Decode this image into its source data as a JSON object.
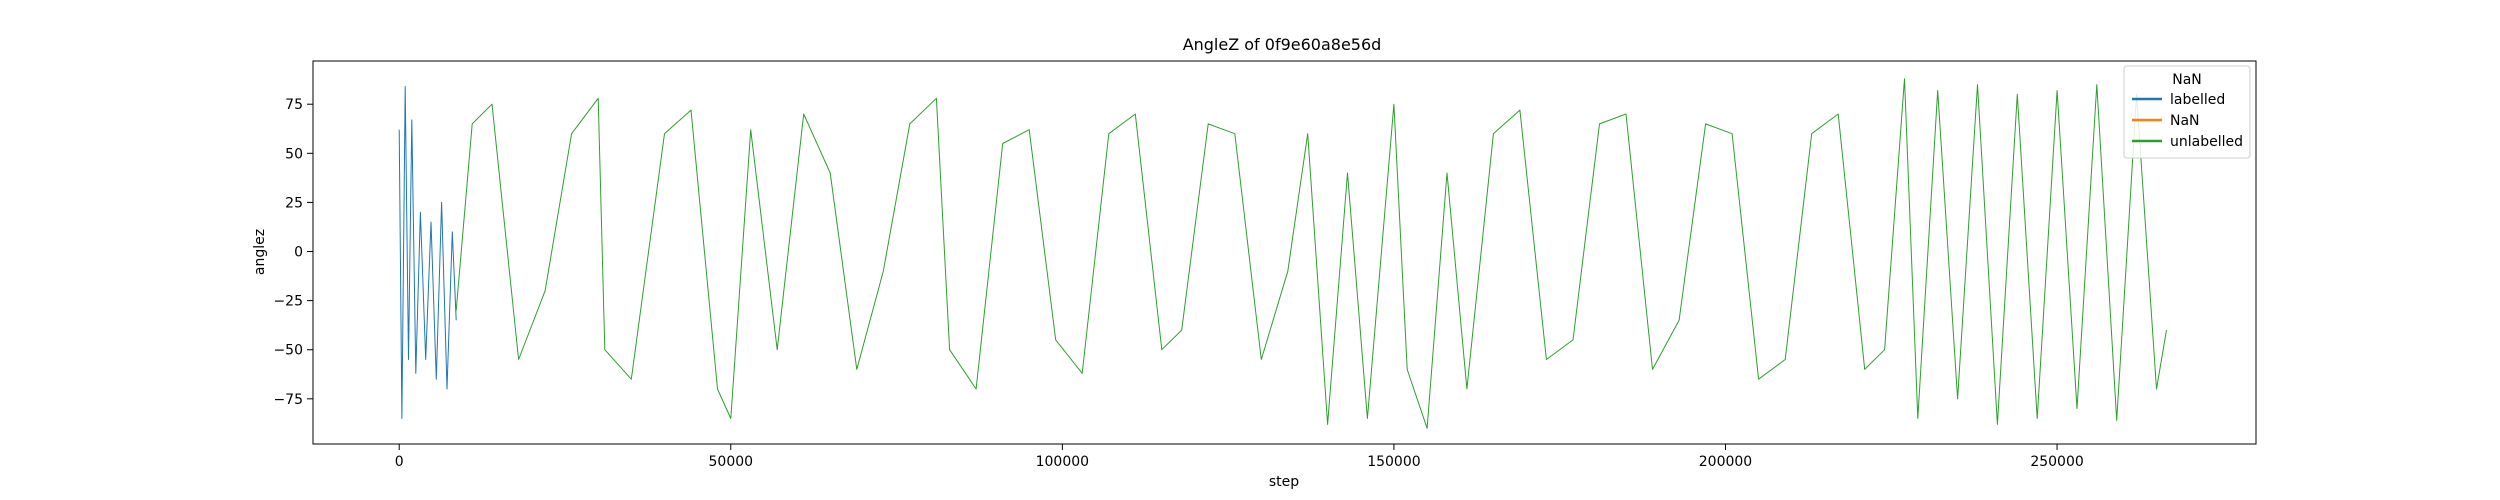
{
  "chart_data": {
    "type": "line",
    "title": "AngleZ of 0f9e60a8e56d",
    "xlabel": "step",
    "ylabel": "anglez",
    "xlim": [
      -13000,
      280000
    ],
    "ylim": [
      -98,
      97
    ],
    "xticks": [
      0,
      50000,
      100000,
      150000,
      200000,
      250000
    ],
    "xtick_labels": [
      "0",
      "50000",
      "100000",
      "150000",
      "200000",
      "250000"
    ],
    "yticks": [
      -75,
      -50,
      -25,
      0,
      25,
      50,
      75
    ],
    "ytick_labels": [
      "−75",
      "−50",
      "−25",
      "0",
      "25",
      "50",
      "75"
    ],
    "grid": false,
    "legend": {
      "title": "NaN",
      "placement": "top-right",
      "entries": [
        "labelled",
        "NaN",
        "unlabelled"
      ]
    },
    "series": [
      {
        "name": "labelled",
        "color": "#1f77b4",
        "x": [
          0,
          400,
          900,
          1400,
          1900,
          2500,
          3200,
          4000,
          4800,
          5600,
          6400,
          7200,
          8000,
          8600
        ],
        "y": [
          62,
          -85,
          84,
          -55,
          67,
          -62,
          20,
          -55,
          15,
          -65,
          25,
          -70,
          10,
          -35
        ]
      },
      {
        "name": "NaN",
        "color": "#ff7f0e",
        "x": [],
        "y": []
      },
      {
        "name": "unlabelled",
        "color": "#2ca02c",
        "x": [
          8600,
          11000,
          14000,
          18000,
          22000,
          26000,
          30000,
          31000,
          35000,
          40000,
          44000,
          48000,
          50000,
          53000,
          57000,
          61000,
          65000,
          69000,
          73000,
          77000,
          81000,
          83000,
          87000,
          91000,
          95000,
          99000,
          103000,
          107000,
          111000,
          115000,
          118000,
          122000,
          126000,
          130000,
          134000,
          137000,
          140000,
          143000,
          146000,
          150000,
          152000,
          155000,
          158000,
          161000,
          165000,
          169000,
          173000,
          177000,
          181000,
          185000,
          189000,
          193000,
          197000,
          201000,
          205000,
          209000,
          213000,
          217000,
          221000,
          224000,
          227000,
          229000,
          232000,
          235000,
          238000,
          241000,
          244000,
          247000,
          250000,
          253000,
          256000,
          259000,
          262000,
          265000,
          266500
        ],
        "y": [
          -30,
          65,
          75,
          -55,
          -20,
          60,
          78,
          -50,
          -65,
          60,
          72,
          -70,
          -85,
          62,
          -50,
          70,
          40,
          -60,
          -10,
          65,
          78,
          -50,
          -70,
          55,
          62,
          -45,
          -62,
          60,
          70,
          -50,
          -40,
          65,
          60,
          -55,
          -10,
          60,
          -88,
          40,
          -85,
          75,
          -60,
          -90,
          40,
          -70,
          60,
          72,
          -55,
          -45,
          65,
          70,
          -60,
          -35,
          65,
          60,
          -65,
          -55,
          60,
          70,
          -60,
          -50,
          88,
          -85,
          82,
          -75,
          85,
          -88,
          80,
          -85,
          82,
          -80,
          85,
          -86,
          80,
          -70,
          -40
        ]
      }
    ]
  }
}
